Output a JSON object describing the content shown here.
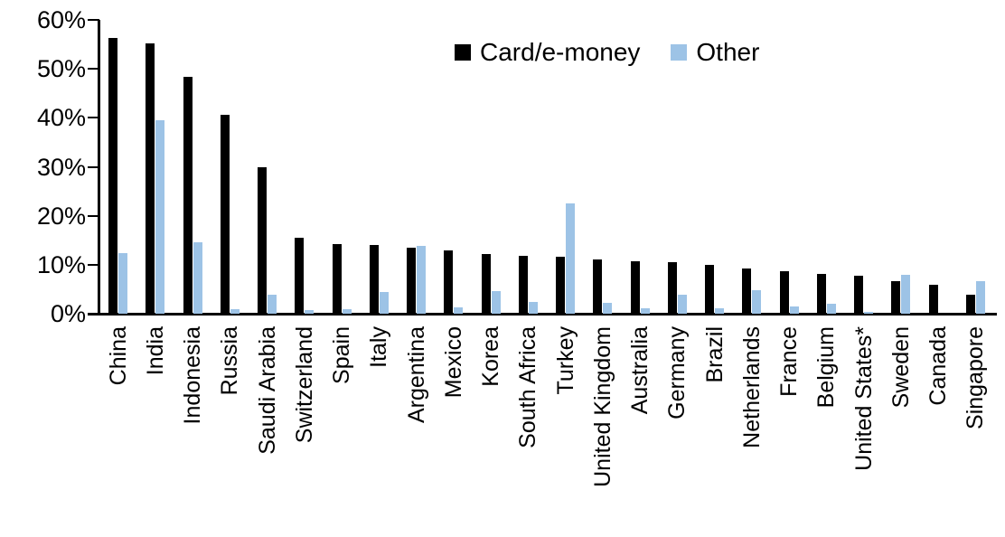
{
  "chart_data": {
    "type": "bar",
    "title": "",
    "xlabel": "",
    "ylabel": "",
    "ylim": [
      0,
      60
    ],
    "grid": false,
    "legend_position": "top-center",
    "yticks": [
      "0%",
      "10%",
      "20%",
      "30%",
      "40%",
      "50%",
      "60%"
    ],
    "ytick_values": [
      0,
      10,
      20,
      30,
      40,
      50,
      60
    ],
    "categories": [
      "China",
      "India",
      "Indonesia",
      "Russia",
      "Saudi Arabia",
      "Switzerland",
      "Spain",
      "Italy",
      "Argentina",
      "Mexico",
      "Korea",
      "South Africa",
      "Turkey",
      "United Kingdom",
      "Australia",
      "Germany",
      "Brazil",
      "Netherlands",
      "France",
      "Belgium",
      "United States*",
      "Sweden",
      "Canada",
      "Singapore"
    ],
    "series": [
      {
        "name": "Card/e-money",
        "color": "#000000",
        "values": [
          56.3,
          55.2,
          48.4,
          40.6,
          29.9,
          15.6,
          14.2,
          14.0,
          13.4,
          12.9,
          12.2,
          11.8,
          11.7,
          11.0,
          10.8,
          10.6,
          10.0,
          9.2,
          8.6,
          8.2,
          7.8,
          6.6,
          6.0,
          3.9
        ]
      },
      {
        "name": "Other",
        "color": "#9DC3E6",
        "values": [
          12.3,
          39.6,
          14.5,
          1.0,
          3.9,
          0.7,
          0.9,
          4.5,
          13.8,
          1.3,
          4.7,
          2.4,
          22.5,
          2.3,
          1.1,
          3.9,
          1.2,
          4.8,
          1.5,
          2.0,
          0.3,
          8.0,
          0.0,
          6.7
        ]
      }
    ]
  }
}
